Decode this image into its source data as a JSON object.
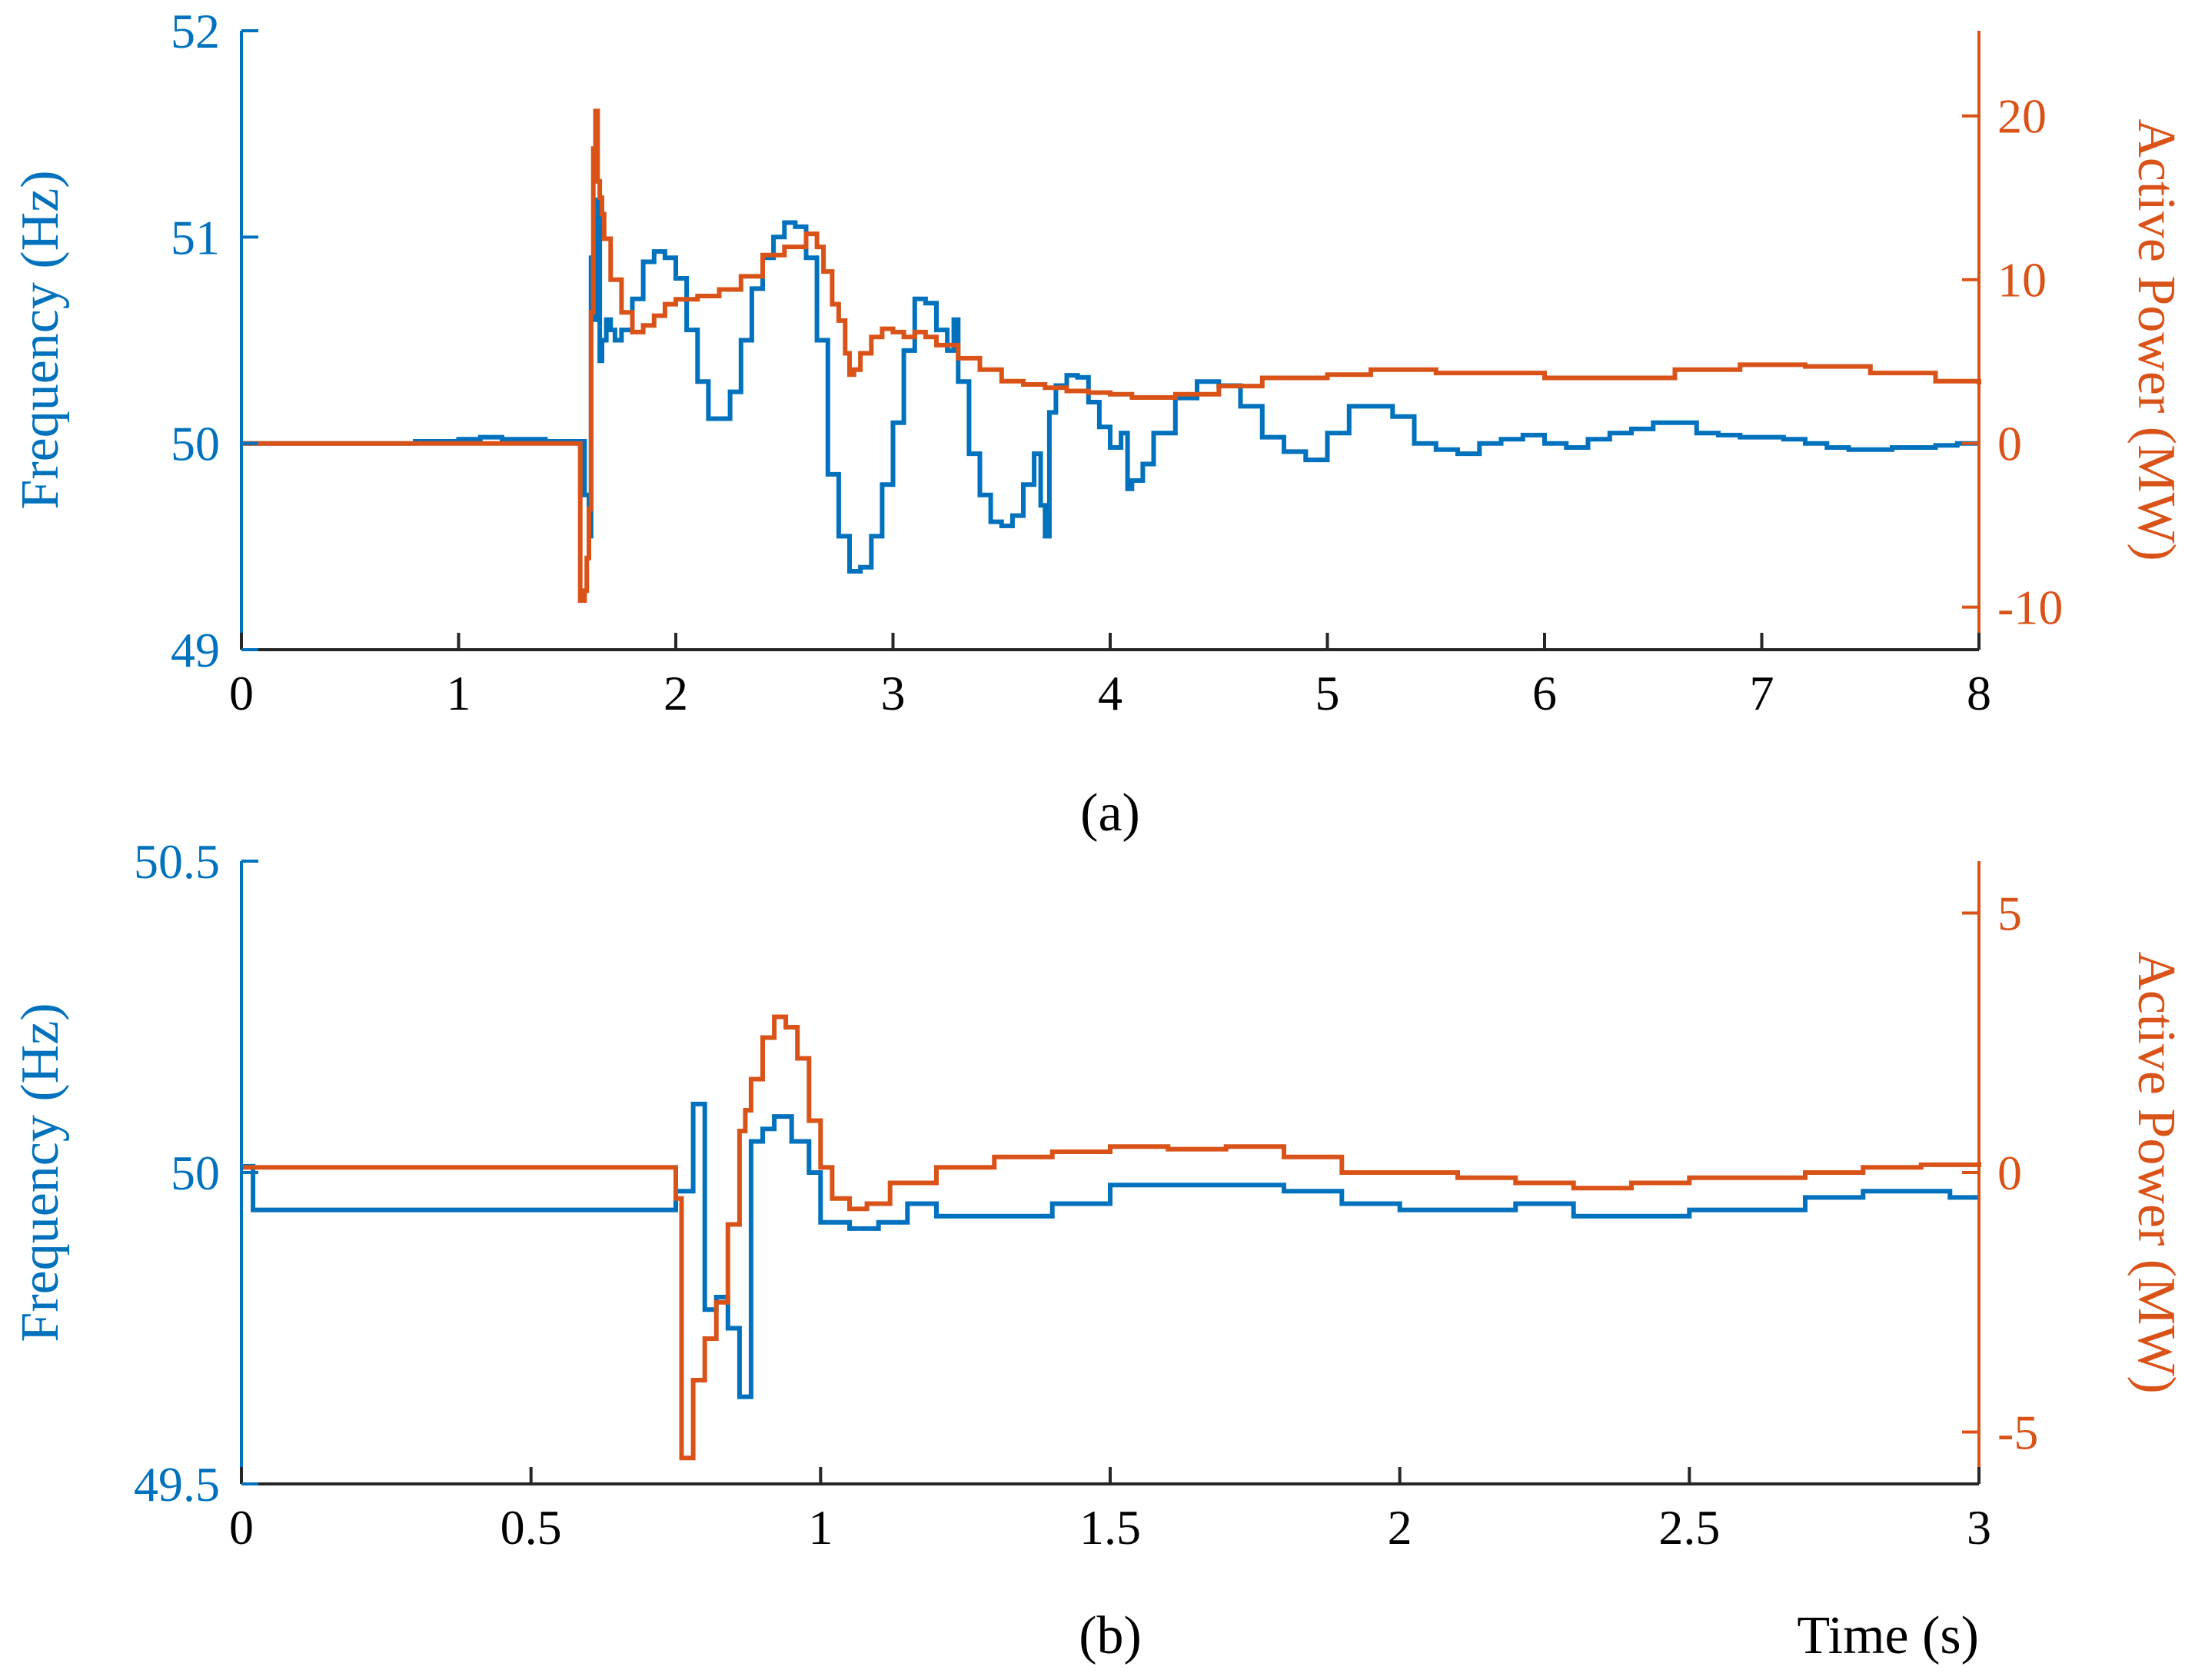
{
  "colors": {
    "frequency": "#0072bd",
    "power": "#d95319",
    "axis": "#262626",
    "background": "#ffffff"
  },
  "chart_data": [
    {
      "type": "line",
      "id": "a",
      "caption": "(a)",
      "xlabel": "",
      "xlim": [
        0,
        8
      ],
      "xticks": [
        0,
        1,
        2,
        3,
        4,
        5,
        6,
        7,
        8
      ],
      "xtick_labels": [
        "0",
        "1",
        "2",
        "3",
        "4",
        "5",
        "6",
        "7",
        "8"
      ],
      "left_axis": {
        "label": "Frequency (Hz)",
        "lim": [
          49,
          52
        ],
        "ticks": [
          49,
          50,
          51,
          52
        ],
        "tick_labels": [
          "49",
          "50",
          "51",
          "52"
        ]
      },
      "right_axis": {
        "label": "Active Power (MW)",
        "lim": [
          -12.6,
          25.2
        ],
        "ticks": [
          -10,
          0,
          10,
          20
        ],
        "tick_labels": [
          "-10",
          "0",
          "10",
          "20"
        ]
      },
      "series": [
        {
          "name": "Frequency",
          "axis": "left",
          "color_key": "frequency",
          "x": [
            0,
            0.1,
            0.2,
            0.4,
            0.6,
            0.8,
            1.0,
            1.1,
            1.2,
            1.4,
            1.55,
            1.56,
            1.58,
            1.6,
            1.61,
            1.62,
            1.64,
            1.65,
            1.66,
            1.68,
            1.7,
            1.72,
            1.75,
            1.8,
            1.85,
            1.9,
            1.95,
            2.0,
            2.05,
            2.1,
            2.15,
            2.2,
            2.25,
            2.3,
            2.35,
            2.4,
            2.45,
            2.5,
            2.55,
            2.6,
            2.65,
            2.7,
            2.75,
            2.8,
            2.85,
            2.9,
            2.95,
            3.0,
            3.05,
            3.1,
            3.15,
            3.2,
            3.25,
            3.28,
            3.3,
            3.35,
            3.4,
            3.45,
            3.5,
            3.55,
            3.6,
            3.65,
            3.68,
            3.7,
            3.72,
            3.75,
            3.8,
            3.85,
            3.9,
            3.95,
            4.0,
            4.05,
            4.08,
            4.1,
            4.15,
            4.2,
            4.3,
            4.4,
            4.5,
            4.6,
            4.7,
            4.8,
            4.9,
            5.0,
            5.1,
            5.2,
            5.3,
            5.4,
            5.5,
            5.6,
            5.7,
            5.8,
            5.9,
            6.0,
            6.1,
            6.2,
            6.3,
            6.4,
            6.5,
            6.6,
            6.7,
            6.8,
            6.9,
            7.0,
            7.1,
            7.2,
            7.3,
            7.4,
            7.5,
            7.6,
            7.7,
            7.8,
            7.9,
            8.0
          ],
          "values": [
            50.0,
            50.0,
            50.0,
            50.0,
            50.0,
            50.01,
            50.02,
            50.03,
            50.02,
            50.01,
            50.0,
            50.01,
            49.75,
            49.55,
            50.9,
            50.6,
            51.18,
            50.4,
            50.5,
            50.6,
            50.55,
            50.5,
            50.55,
            50.7,
            50.88,
            50.93,
            50.9,
            50.8,
            50.55,
            50.3,
            50.12,
            50.12,
            50.25,
            50.5,
            50.75,
            50.9,
            51.0,
            51.07,
            51.05,
            50.9,
            50.5,
            49.85,
            49.55,
            49.38,
            49.4,
            49.55,
            49.8,
            50.1,
            50.45,
            50.7,
            50.68,
            50.55,
            50.45,
            50.6,
            50.3,
            49.95,
            49.75,
            49.62,
            49.6,
            49.65,
            49.8,
            49.95,
            49.7,
            49.55,
            50.15,
            50.28,
            50.33,
            50.32,
            50.2,
            50.08,
            49.98,
            50.05,
            49.78,
            49.82,
            49.9,
            50.05,
            50.22,
            50.3,
            50.28,
            50.18,
            50.03,
            49.96,
            49.92,
            50.05,
            50.18,
            50.18,
            50.13,
            50.0,
            49.97,
            49.95,
            50.0,
            50.02,
            50.04,
            50.0,
            49.98,
            50.02,
            50.05,
            50.07,
            50.1,
            50.1,
            50.05,
            50.04,
            50.03,
            50.03,
            50.02,
            50.0,
            49.98,
            49.97,
            49.97,
            49.98,
            49.98,
            49.99,
            50.0,
            50.0
          ],
          "step": true
        },
        {
          "name": "Active Power",
          "axis": "right",
          "color_key": "power",
          "x": [
            0,
            0.5,
            1.0,
            1.5,
            1.52,
            1.55,
            1.56,
            1.57,
            1.58,
            1.59,
            1.6,
            1.61,
            1.62,
            1.63,
            1.64,
            1.65,
            1.66,
            1.67,
            1.7,
            1.75,
            1.8,
            1.85,
            1.9,
            1.95,
            2.0,
            2.1,
            2.2,
            2.3,
            2.4,
            2.5,
            2.6,
            2.65,
            2.68,
            2.72,
            2.75,
            2.78,
            2.8,
            2.82,
            2.85,
            2.9,
            2.95,
            3.0,
            3.05,
            3.1,
            3.15,
            3.2,
            3.3,
            3.4,
            3.5,
            3.6,
            3.7,
            3.8,
            3.9,
            4.0,
            4.1,
            4.2,
            4.3,
            4.5,
            4.7,
            5.0,
            5.2,
            5.5,
            6.0,
            6.3,
            6.6,
            6.9,
            7.2,
            7.5,
            7.8,
            8.0
          ],
          "values": [
            0,
            0,
            0,
            0,
            0,
            0,
            -9.6,
            -9.6,
            -9,
            -7,
            -4,
            8,
            18,
            20.3,
            16,
            15,
            14,
            12.5,
            10,
            8,
            6.8,
            7.2,
            7.8,
            8.5,
            8.8,
            9.0,
            9.4,
            10.2,
            11.5,
            12.0,
            12.8,
            12.0,
            10.5,
            8.5,
            7.5,
            5.5,
            4.2,
            4.5,
            5.5,
            6.5,
            7.0,
            6.8,
            6.5,
            6.8,
            6.5,
            6.0,
            5.2,
            4.5,
            3.8,
            3.6,
            3.4,
            3.2,
            3.1,
            3.0,
            2.8,
            2.8,
            3.0,
            3.5,
            4.0,
            4.2,
            4.5,
            4.3,
            4.0,
            4.0,
            4.5,
            4.8,
            4.7,
            4.3,
            3.8,
            3.6
          ],
          "step": true
        }
      ]
    },
    {
      "type": "line",
      "id": "b",
      "caption": "(b)",
      "xlabel": "Time (s)",
      "xlim": [
        0,
        3
      ],
      "xticks": [
        0,
        0.5,
        1,
        1.5,
        2,
        2.5,
        3
      ],
      "xtick_labels": [
        "0",
        "0.5",
        "1",
        "1.5",
        "2",
        "2.5",
        "3"
      ],
      "left_axis": {
        "label": "Frequency (Hz)",
        "lim": [
          49.5,
          50.5
        ],
        "ticks": [
          49.5,
          50,
          50.5
        ],
        "tick_labels": [
          "49.5",
          "50",
          "50.5"
        ]
      },
      "right_axis": {
        "label": "Active Power (MW)",
        "lim": [
          -6,
          6
        ],
        "ticks": [
          -5,
          0,
          5
        ],
        "tick_labels": [
          "-5",
          "0",
          "5"
        ]
      },
      "series": [
        {
          "name": "Frequency",
          "axis": "left",
          "color_key": "frequency",
          "x": [
            0,
            0.02,
            0.1,
            0.3,
            0.5,
            0.65,
            0.75,
            0.78,
            0.8,
            0.82,
            0.84,
            0.86,
            0.88,
            0.9,
            0.92,
            0.95,
            0.98,
            1.0,
            1.05,
            1.1,
            1.15,
            1.2,
            1.3,
            1.4,
            1.5,
            1.6,
            1.7,
            1.8,
            1.9,
            2.0,
            2.1,
            2.2,
            2.3,
            2.4,
            2.5,
            2.6,
            2.7,
            2.8,
            2.9,
            2.95,
            3.0
          ],
          "values": [
            50.01,
            49.94,
            49.94,
            49.94,
            49.94,
            49.94,
            49.97,
            50.11,
            49.78,
            49.8,
            49.75,
            49.64,
            50.05,
            50.07,
            50.09,
            50.05,
            50.0,
            49.92,
            49.91,
            49.92,
            49.95,
            49.93,
            49.93,
            49.95,
            49.98,
            49.98,
            49.98,
            49.97,
            49.95,
            49.94,
            49.94,
            49.95,
            49.93,
            49.93,
            49.94,
            49.94,
            49.96,
            49.97,
            49.97,
            49.96,
            49.96
          ],
          "step": true
        },
        {
          "name": "Active Power",
          "axis": "right",
          "color_key": "power",
          "x": [
            0,
            0.3,
            0.5,
            0.7,
            0.75,
            0.76,
            0.78,
            0.8,
            0.82,
            0.84,
            0.86,
            0.87,
            0.88,
            0.9,
            0.92,
            0.94,
            0.96,
            0.98,
            1.0,
            1.02,
            1.05,
            1.08,
            1.12,
            1.2,
            1.3,
            1.4,
            1.5,
            1.6,
            1.7,
            1.8,
            1.9,
            2.0,
            2.1,
            2.2,
            2.3,
            2.4,
            2.5,
            2.6,
            2.7,
            2.8,
            2.9,
            3.0
          ],
          "values": [
            0.1,
            0.1,
            0.1,
            0.1,
            -0.5,
            -5.5,
            -4.0,
            -3.2,
            -2.5,
            -1.0,
            0.8,
            1.2,
            1.8,
            2.6,
            3.0,
            2.8,
            2.2,
            1.0,
            0.1,
            -0.5,
            -0.7,
            -0.6,
            -0.2,
            0.1,
            0.3,
            0.4,
            0.5,
            0.45,
            0.5,
            0.3,
            0.0,
            0.0,
            -0.1,
            -0.2,
            -0.3,
            -0.2,
            -0.1,
            -0.1,
            0.0,
            0.1,
            0.15,
            0.2
          ],
          "step": true
        }
      ]
    }
  ]
}
